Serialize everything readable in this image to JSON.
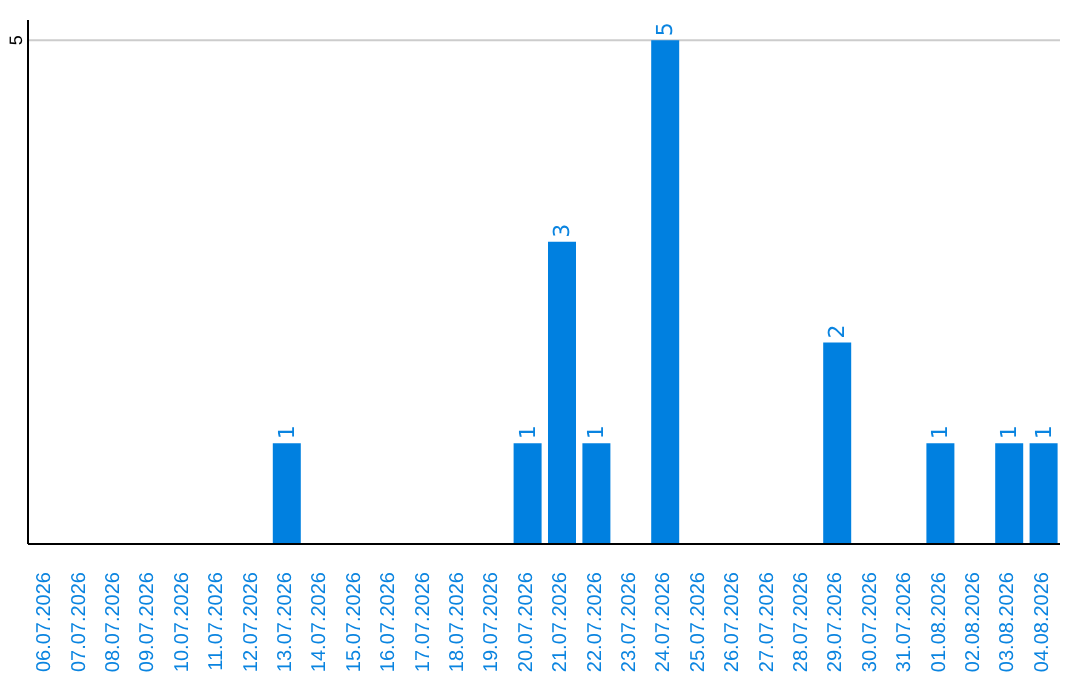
{
  "chart_data": {
    "type": "bar",
    "categories": [
      "06.07.2026",
      "07.07.2026",
      "08.07.2026",
      "09.07.2026",
      "10.07.2026",
      "11.07.2026",
      "12.07.2026",
      "13.07.2026",
      "14.07.2026",
      "15.07.2026",
      "16.07.2026",
      "17.07.2026",
      "18.07.2026",
      "19.07.2026",
      "20.07.2026",
      "21.07.2026",
      "22.07.2026",
      "23.07.2026",
      "24.07.2026",
      "25.07.2026",
      "26.07.2026",
      "27.07.2026",
      "28.07.2026",
      "29.07.2026",
      "30.07.2026",
      "31.07.2026",
      "01.08.2026",
      "02.08.2026",
      "03.08.2026",
      "04.08.2026"
    ],
    "values": [
      0,
      0,
      0,
      0,
      0,
      0,
      0,
      1,
      0,
      0,
      0,
      0,
      0,
      0,
      1,
      3,
      1,
      0,
      5,
      0,
      0,
      0,
      0,
      2,
      0,
      0,
      1,
      0,
      1,
      1
    ],
    "value_labels": [
      null,
      null,
      null,
      null,
      null,
      null,
      null,
      "1",
      null,
      null,
      null,
      null,
      null,
      null,
      "1",
      "3",
      "1",
      null,
      "5",
      null,
      null,
      null,
      null,
      "2",
      null,
      null,
      "1",
      null,
      "1",
      "1"
    ],
    "color": "#0080e0",
    "ylim": [
      0,
      5.2
    ],
    "yticks": [
      5
    ],
    "grid": "y"
  }
}
